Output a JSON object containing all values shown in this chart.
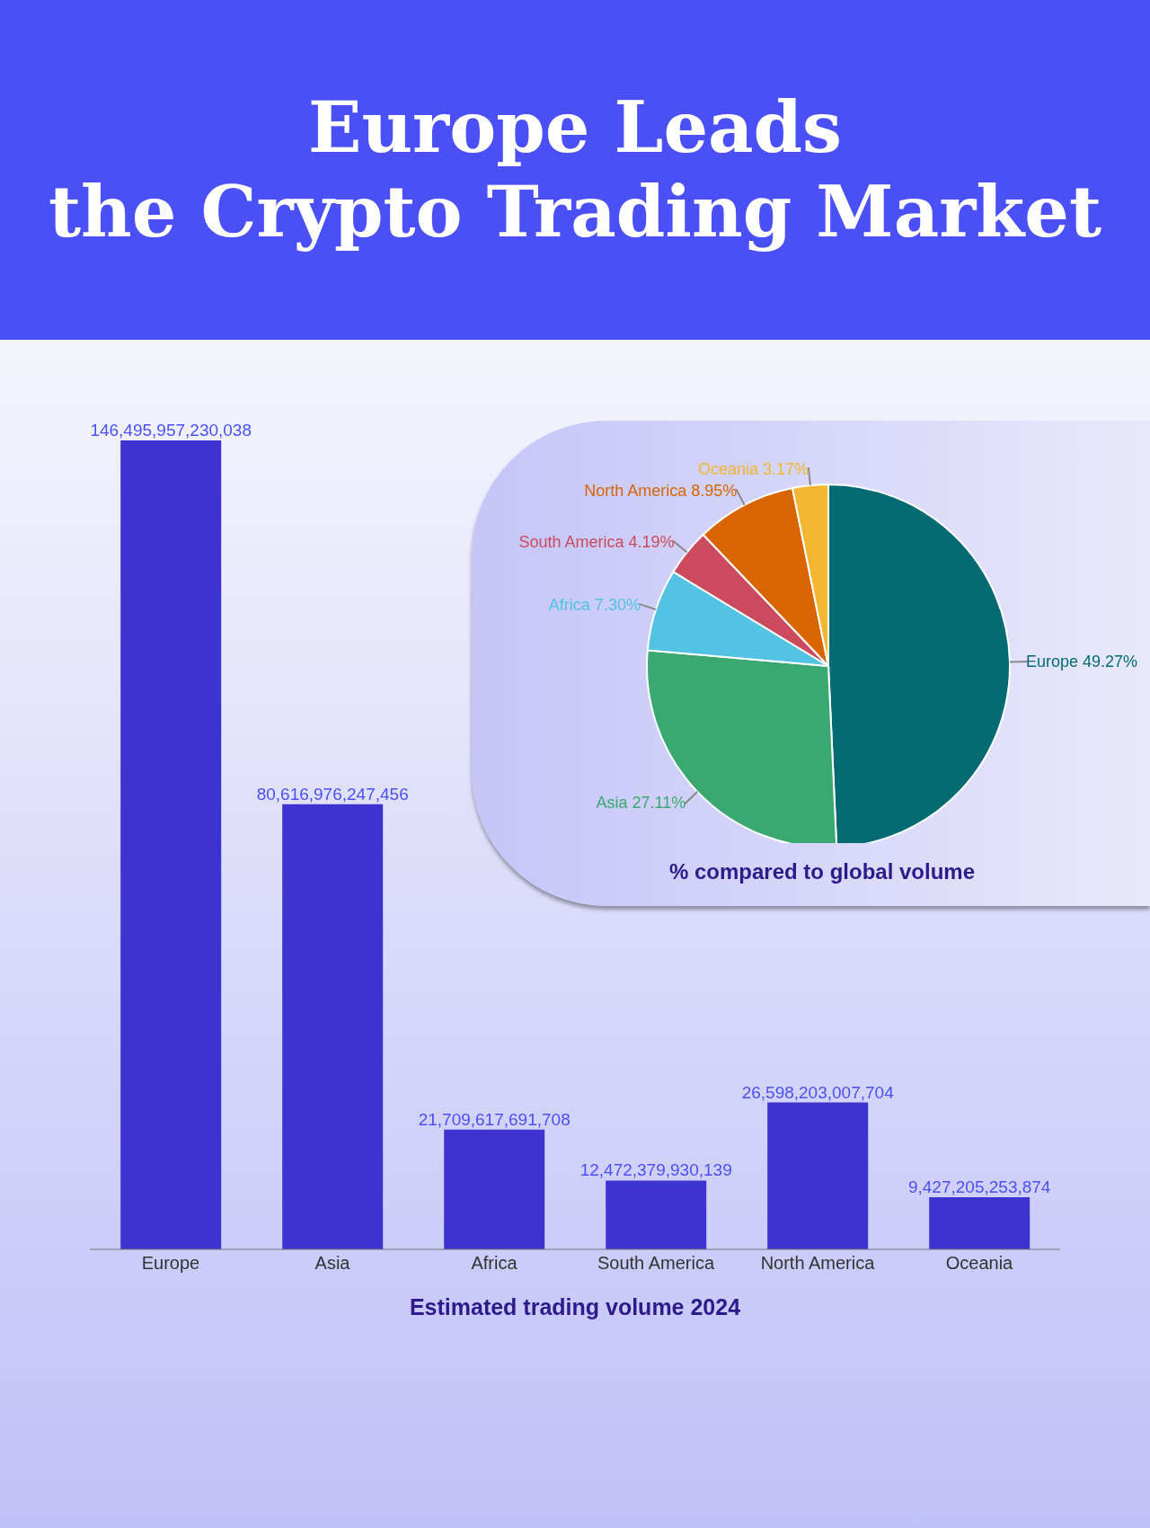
{
  "chart_data": [
    {
      "type": "bar",
      "title": "Europe Leads\nthe Crypto Trading Market",
      "xlabel": "Estimated trading volume 2024",
      "categories": [
        "Europe",
        "Asia",
        "Africa",
        "South America",
        "North America",
        "Oceania"
      ],
      "values": [
        146495957230038,
        80616976247456,
        21709617691708,
        12472379930139,
        26598203007704,
        9427205253874
      ],
      "value_labels": [
        "146,495,957,230,038",
        "80,616,976,247,456",
        "21,709,617,691,708",
        "12,472,379,930,139",
        "26,598,203,007,704",
        "9,427,205,253,874"
      ],
      "color": "#3d33d0"
    },
    {
      "type": "pie",
      "title": "% compared to global volume",
      "categories": [
        "Europe",
        "Asia",
        "Africa",
        "South America",
        "North America",
        "Oceania"
      ],
      "values": [
        49.27,
        27.11,
        7.3,
        4.19,
        8.95,
        3.17
      ],
      "value_labels": [
        "49.27%",
        "27.11%",
        "7.30%",
        "4.19%",
        "8.95%",
        "3.17%"
      ],
      "colors": [
        "#056b73",
        "#3aa870",
        "#52c3e3",
        "#cc4a5e",
        "#d86500",
        "#f2b632"
      ]
    }
  ]
}
